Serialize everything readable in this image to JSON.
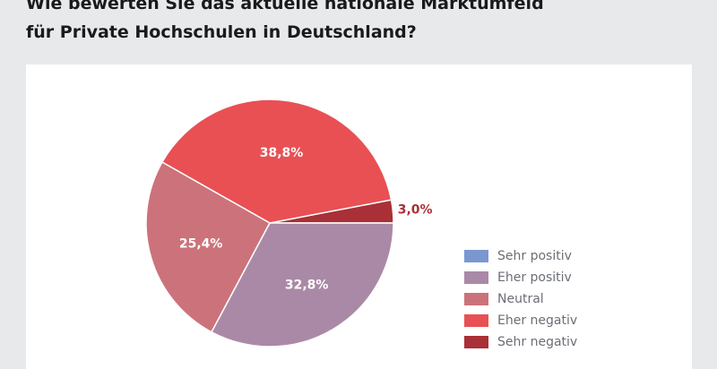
{
  "title": {
    "line1": "Wie bewerten Sie das aktuelle nationale Marktumfeld",
    "line2": "für Private Hochschulen in Deutschland?"
  },
  "chart_data": {
    "type": "pie",
    "title": "Wie bewerten Sie das aktuelle nationale Marktumfeld für Private Hochschulen in Deutschland?",
    "legend_position": "right",
    "slices": [
      {
        "name": "Sehr positiv",
        "value": 0,
        "label": "",
        "color": "#7b97d0"
      },
      {
        "name": "Eher positiv",
        "value": 32.8,
        "label": "32,8%",
        "color": "#aa89a6"
      },
      {
        "name": "Neutral",
        "value": 25.4,
        "label": "25,4%",
        "color": "#cc727a"
      },
      {
        "name": "Eher negativ",
        "value": 38.8,
        "label": "38,8%",
        "color": "#e85054"
      },
      {
        "name": "Sehr negativ",
        "value": 3.0,
        "label": "3,0%",
        "color": "#a93036"
      }
    ]
  }
}
